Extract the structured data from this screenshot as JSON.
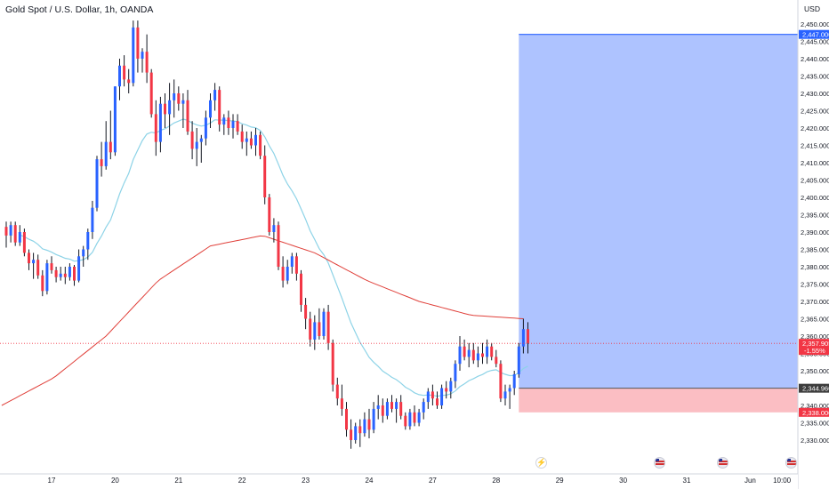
{
  "header": {
    "symbol_title": "Gold Spot / U.S. Dollar, 1h, OANDA",
    "currency_label": "USD"
  },
  "price_axis": {
    "ticks": [
      {
        "value": 2450,
        "label": "2,450.000"
      },
      {
        "value": 2445,
        "label": "2,445.000"
      },
      {
        "value": 2440,
        "label": "2,440.000"
      },
      {
        "value": 2435,
        "label": "2,435.000"
      },
      {
        "value": 2430,
        "label": "2,430.000"
      },
      {
        "value": 2425,
        "label": "2,425.000"
      },
      {
        "value": 2420,
        "label": "2,420.000"
      },
      {
        "value": 2415,
        "label": "2,415.000"
      },
      {
        "value": 2410,
        "label": "2,410.000"
      },
      {
        "value": 2405,
        "label": "2,405.000"
      },
      {
        "value": 2400,
        "label": "2,400.000"
      },
      {
        "value": 2395,
        "label": "2,395.000"
      },
      {
        "value": 2390,
        "label": "2,390.000"
      },
      {
        "value": 2385,
        "label": "2,385.000"
      },
      {
        "value": 2380,
        "label": "2,380.000"
      },
      {
        "value": 2375,
        "label": "2,375.000"
      },
      {
        "value": 2370,
        "label": "2,370.000"
      },
      {
        "value": 2365,
        "label": "2,365.000"
      },
      {
        "value": 2360,
        "label": "2,360.000"
      },
      {
        "value": 2355,
        "label": "2,355.000"
      },
      {
        "value": 2350,
        "label": "2,350.000"
      },
      {
        "value": 2340,
        "label": "2,340.000"
      },
      {
        "value": 2335,
        "label": "2,335.000"
      },
      {
        "value": 2330,
        "label": "2,330.000"
      }
    ],
    "range": [
      2327.5,
      2451.5
    ]
  },
  "time_axis": {
    "ticks": [
      {
        "label": "17",
        "index": 10
      },
      {
        "label": "20",
        "index": 24
      },
      {
        "label": "21",
        "index": 38
      },
      {
        "label": "22",
        "index": 52
      },
      {
        "label": "23",
        "index": 66
      },
      {
        "label": "24",
        "index": 80
      },
      {
        "label": "27",
        "index": 94
      },
      {
        "label": "28",
        "index": 108
      },
      {
        "label": "29",
        "index": 122
      },
      {
        "label": "30",
        "index": 136
      },
      {
        "label": "31",
        "index": 150
      },
      {
        "label": "Jun",
        "index": 164
      },
      {
        "label": "10:00",
        "index": 171
      }
    ]
  },
  "position_tool": {
    "type": "long",
    "entry": 2344.96,
    "target": 2447.0,
    "stop": 2338.0,
    "start_index": 113,
    "target_label": "2,447.000",
    "entry_label": "2,344.960",
    "stop_label": "2,338.000"
  },
  "last_price": {
    "value": 2357.905,
    "label": "2,357.905",
    "change": "-1.55%"
  },
  "colors": {
    "bull": "#2962ff",
    "bear": "#f23645",
    "wick": "#131722",
    "fast_ma": "#8dd3e7",
    "slow_ma": "#e0403a",
    "target_zone": "rgba(41,98,255,0.38)",
    "stop_zone": "rgba(242,54,69,0.32)",
    "last_price_badge": "#f23645",
    "entry_badge": "#3d3d3d"
  },
  "event_icons": [
    {
      "type": "flash",
      "glyph": "⚡",
      "index": 118
    },
    {
      "type": "flag",
      "index": 144
    },
    {
      "type": "flag",
      "index": 158
    },
    {
      "type": "flag",
      "index": 173
    }
  ],
  "chart_data": {
    "type": "candlestick",
    "title": "Gold Spot / U.S. Dollar, 1h, OANDA",
    "ylabel": "USD",
    "ylim": [
      2327.5,
      2451.5
    ],
    "candle_ohlc": [
      [
        2391.5,
        2393,
        2385.5,
        2389
      ],
      [
        2389,
        2393,
        2387,
        2392
      ],
      [
        2392,
        2393,
        2386,
        2387
      ],
      [
        2387,
        2392,
        2386,
        2390
      ],
      [
        2390,
        2391,
        2383,
        2384
      ],
      [
        2384,
        2385,
        2379,
        2381
      ],
      [
        2381,
        2384,
        2376.5,
        2382
      ],
      [
        2382,
        2383.5,
        2376.5,
        2377.5
      ],
      [
        2377.5,
        2379,
        2371.5,
        2373
      ],
      [
        2373,
        2382,
        2372,
        2381
      ],
      [
        2381,
        2383,
        2378,
        2379
      ],
      [
        2379,
        2380,
        2375.5,
        2377
      ],
      [
        2377,
        2380,
        2376,
        2378
      ],
      [
        2378,
        2380,
        2375,
        2377
      ],
      [
        2377,
        2381,
        2376,
        2380
      ],
      [
        2380,
        2380.5,
        2374.5,
        2376
      ],
      [
        2376,
        2385,
        2375.5,
        2383
      ],
      [
        2383,
        2386,
        2380,
        2385
      ],
      [
        2385,
        2391,
        2382,
        2390
      ],
      [
        2390,
        2399,
        2388,
        2397
      ],
      [
        2397,
        2412,
        2396,
        2411
      ],
      [
        2411,
        2416,
        2406,
        2409
      ],
      [
        2409,
        2422,
        2408,
        2416
      ],
      [
        2416,
        2425,
        2411,
        2413
      ],
      [
        2413,
        2432,
        2412,
        2432
      ],
      [
        2432,
        2440,
        2428,
        2438
      ],
      [
        2438,
        2441,
        2432,
        2434
      ],
      [
        2434,
        2437,
        2430,
        2433
      ],
      [
        2433,
        2451,
        2432,
        2449
      ],
      [
        2449,
        2451,
        2436,
        2440
      ],
      [
        2440,
        2443,
        2436,
        2442
      ],
      [
        2442,
        2447,
        2433,
        2436
      ],
      [
        2436,
        2437,
        2423,
        2424
      ],
      [
        2424,
        2428,
        2412,
        2416
      ],
      [
        2416,
        2429,
        2413,
        2427
      ],
      [
        2427,
        2430,
        2420,
        2424
      ],
      [
        2424,
        2433,
        2418,
        2428
      ],
      [
        2428,
        2434,
        2423,
        2430
      ],
      [
        2430,
        2432,
        2425,
        2427
      ],
      [
        2427,
        2430,
        2420,
        2428
      ],
      [
        2428,
        2431,
        2418,
        2419
      ],
      [
        2419,
        2422,
        2411,
        2414
      ],
      [
        2414,
        2420,
        2409,
        2416
      ],
      [
        2416,
        2418,
        2410,
        2417
      ],
      [
        2417,
        2425,
        2415,
        2423
      ],
      [
        2423,
        2430,
        2420,
        2428
      ],
      [
        2428,
        2433,
        2425,
        2431
      ],
      [
        2431,
        2432,
        2419,
        2421
      ],
      [
        2421,
        2424,
        2418,
        2423
      ],
      [
        2423,
        2425,
        2418,
        2420
      ],
      [
        2420,
        2424,
        2417,
        2422
      ],
      [
        2422,
        2424,
        2418,
        2419
      ],
      [
        2419,
        2421,
        2414,
        2416
      ],
      [
        2416,
        2419,
        2412,
        2417
      ],
      [
        2417,
        2419,
        2414,
        2415
      ],
      [
        2415,
        2420,
        2412,
        2418
      ],
      [
        2418,
        2419,
        2411,
        2412
      ],
      [
        2412,
        2415,
        2398,
        2400
      ],
      [
        2400,
        2401,
        2389,
        2390
      ],
      [
        2390,
        2394,
        2387,
        2392
      ],
      [
        2392,
        2393,
        2379,
        2380
      ],
      [
        2380,
        2383,
        2374,
        2376
      ],
      [
        2376,
        2382,
        2375,
        2380
      ],
      [
        2380,
        2384,
        2378,
        2383
      ],
      [
        2383,
        2384,
        2376,
        2378
      ],
      [
        2378,
        2379,
        2367,
        2369
      ],
      [
        2369,
        2371,
        2362,
        2365
      ],
      [
        2365,
        2367,
        2357,
        2359
      ],
      [
        2359,
        2366,
        2356,
        2364
      ],
      [
        2364,
        2368,
        2359,
        2360
      ],
      [
        2360,
        2368,
        2359,
        2367
      ],
      [
        2367,
        2369,
        2356,
        2358
      ],
      [
        2358,
        2359,
        2344,
        2346
      ],
      [
        2346,
        2348,
        2340,
        2342
      ],
      [
        2342,
        2346,
        2337,
        2339
      ],
      [
        2339,
        2341,
        2331,
        2333
      ],
      [
        2333,
        2336,
        2327.5,
        2330
      ],
      [
        2330,
        2335,
        2329,
        2334
      ],
      [
        2334,
        2336,
        2328,
        2332
      ],
      [
        2332,
        2338,
        2331,
        2336
      ],
      [
        2336,
        2339,
        2330.5,
        2333
      ],
      [
        2333,
        2341,
        2332,
        2339
      ],
      [
        2339,
        2343,
        2336,
        2340
      ],
      [
        2340,
        2342,
        2335,
        2337
      ],
      [
        2337,
        2342,
        2336,
        2341
      ],
      [
        2341,
        2343,
        2338,
        2339
      ],
      [
        2339,
        2342,
        2335,
        2341
      ],
      [
        2341,
        2343,
        2336,
        2337
      ],
      [
        2337,
        2338,
        2333,
        2334
      ],
      [
        2334,
        2339,
        2333,
        2338
      ],
      [
        2338,
        2340,
        2334,
        2335
      ],
      [
        2335,
        2339,
        2334,
        2338
      ],
      [
        2338,
        2342,
        2336,
        2341
      ],
      [
        2341,
        2345,
        2339,
        2344
      ],
      [
        2344,
        2346,
        2340,
        2342
      ],
      [
        2342,
        2344,
        2339,
        2340
      ],
      [
        2340,
        2346,
        2339,
        2345
      ],
      [
        2345,
        2347,
        2342,
        2344
      ],
      [
        2344,
        2348,
        2342,
        2347
      ],
      [
        2347,
        2353,
        2345,
        2352
      ],
      [
        2352,
        2360,
        2350,
        2357
      ],
      [
        2357,
        2359,
        2353,
        2354
      ],
      [
        2354,
        2358,
        2351,
        2356
      ],
      [
        2356,
        2358,
        2352,
        2353
      ],
      [
        2353,
        2357,
        2351,
        2355
      ],
      [
        2355,
        2358,
        2352,
        2354
      ],
      [
        2354,
        2359,
        2352,
        2357
      ],
      [
        2357,
        2358,
        2353,
        2354
      ],
      [
        2354,
        2356,
        2351,
        2352
      ],
      [
        2352,
        2353,
        2341,
        2342
      ],
      [
        2342,
        2346,
        2340,
        2344
      ],
      [
        2344,
        2346,
        2339,
        2345
      ],
      [
        2345,
        2350,
        2343,
        2349
      ],
      [
        2349,
        2358,
        2348,
        2357
      ],
      [
        2357,
        2365,
        2355,
        2362
      ],
      [
        2362,
        2364,
        2355,
        2358
      ]
    ]
  }
}
